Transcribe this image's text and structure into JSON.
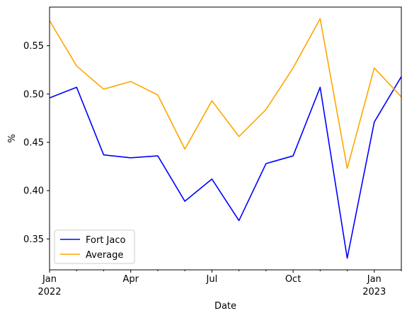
{
  "chart_data": {
    "type": "line",
    "title": "",
    "xlabel": "Date",
    "ylabel": "%",
    "x": [
      "2022-01",
      "2022-02",
      "2022-03",
      "2022-04",
      "2022-05",
      "2022-06",
      "2022-07",
      "2022-08",
      "2022-09",
      "2022-10",
      "2022-11",
      "2022-12",
      "2023-01",
      "2023-02"
    ],
    "xlim": [
      "2022-01",
      "2023-02"
    ],
    "ylim": [
      0.318,
      0.59
    ],
    "yticks": [
      0.35,
      0.4,
      0.45,
      0.5,
      0.55
    ],
    "ytick_labels": [
      "0.35",
      "0.40",
      "0.45",
      "0.50",
      "0.55"
    ],
    "xticks": [
      {
        "x": "2022-01",
        "label": "Jan",
        "sublabel": "2022",
        "major": true
      },
      {
        "x": "2022-02",
        "label": "",
        "sublabel": "",
        "major": false
      },
      {
        "x": "2022-03",
        "label": "",
        "sublabel": "",
        "major": false
      },
      {
        "x": "2022-04",
        "label": "Apr",
        "sublabel": "",
        "major": true
      },
      {
        "x": "2022-05",
        "label": "",
        "sublabel": "",
        "major": false
      },
      {
        "x": "2022-06",
        "label": "",
        "sublabel": "",
        "major": false
      },
      {
        "x": "2022-07",
        "label": "Jul",
        "sublabel": "",
        "major": true
      },
      {
        "x": "2022-08",
        "label": "",
        "sublabel": "",
        "major": false
      },
      {
        "x": "2022-09",
        "label": "",
        "sublabel": "",
        "major": false
      },
      {
        "x": "2022-10",
        "label": "Oct",
        "sublabel": "",
        "major": true
      },
      {
        "x": "2022-11",
        "label": "",
        "sublabel": "",
        "major": false
      },
      {
        "x": "2022-12",
        "label": "",
        "sublabel": "",
        "major": false
      },
      {
        "x": "2023-01",
        "label": "Jan",
        "sublabel": "2023",
        "major": true
      },
      {
        "x": "2023-02",
        "label": "",
        "sublabel": "",
        "major": false
      }
    ],
    "grid": false,
    "legend_position": "lower-left",
    "series": [
      {
        "name": "Fort Jaco",
        "color": "#0000ff",
        "values": [
          0.496,
          0.507,
          0.437,
          0.434,
          0.436,
          0.389,
          0.412,
          0.369,
          0.428,
          0.436,
          0.507,
          0.33,
          0.471,
          0.518
        ]
      },
      {
        "name": "Average",
        "color": "#ffa500",
        "values": [
          0.576,
          0.529,
          0.505,
          0.513,
          0.499,
          0.443,
          0.493,
          0.456,
          0.484,
          0.527,
          0.578,
          0.423,
          0.527,
          0.497
        ]
      }
    ]
  }
}
